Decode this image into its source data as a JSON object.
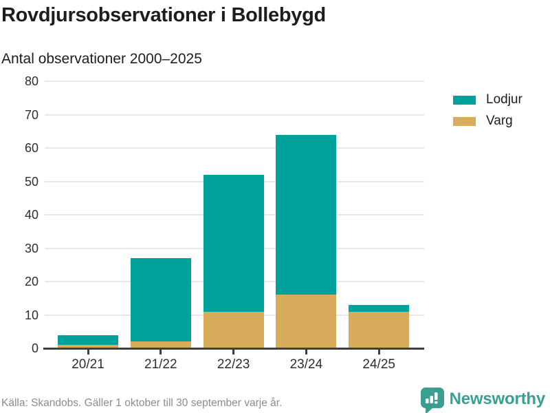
{
  "header": {
    "title": "Rovdjursobservationer i Bollebygd",
    "subtitle": "Antal observationer 2000–2025"
  },
  "chart_data": {
    "type": "bar",
    "stacked": true,
    "title": "Rovdjursobservationer i Bollebygd",
    "subtitle": "Antal observationer 2000–2025",
    "categories": [
      "20/21",
      "21/22",
      "22/23",
      "23/24",
      "24/25"
    ],
    "series": [
      {
        "name": "Lodjur",
        "color": "#00a29b",
        "values": [
          3,
          25,
          41,
          48,
          2
        ]
      },
      {
        "name": "Varg",
        "color": "#d9ac5c",
        "values": [
          1,
          2,
          11,
          16,
          11
        ]
      }
    ],
    "stack_bottom_to_top": [
      "Varg",
      "Lodjur"
    ],
    "totals": [
      4,
      27,
      52,
      64,
      13
    ],
    "xlabel": "",
    "ylabel": "",
    "ylim": [
      0,
      80
    ],
    "yticks": [
      0,
      10,
      20,
      30,
      40,
      50,
      60,
      70,
      80
    ],
    "grid": true,
    "legend_position": "right"
  },
  "legend": {
    "items": [
      {
        "label": "Lodjur",
        "color": "#00a29b"
      },
      {
        "label": "Varg",
        "color": "#d9ac5c"
      }
    ]
  },
  "footer": {
    "source": "Källa: Skandobs. Gäller 1 oktober till 30 september varje år.",
    "brand": "Newsworthy"
  },
  "colors": {
    "lodjur": "#00a29b",
    "varg": "#d9ac5c",
    "brand_teal": "#3a9e90",
    "text_dark": "#1d1d1b",
    "text_gray": "#8b8b95",
    "gridline": "#e7e7e7",
    "axis": "#3f3f3f"
  }
}
